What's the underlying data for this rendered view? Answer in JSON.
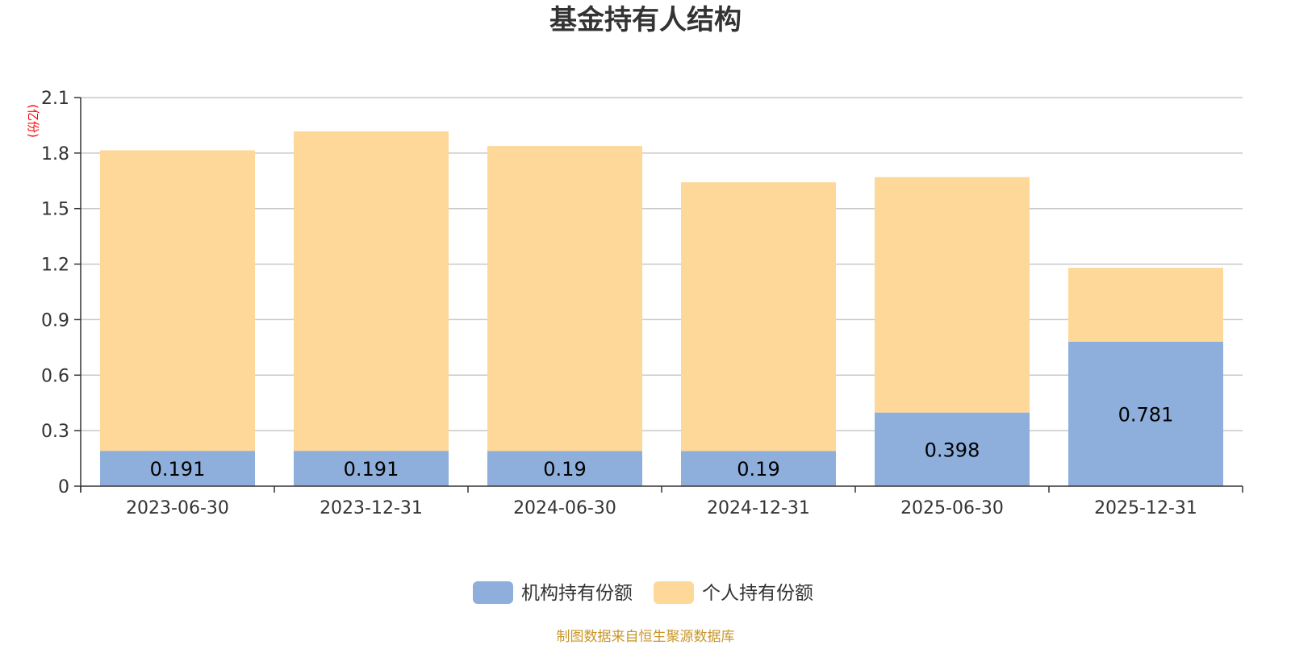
{
  "chart_data": {
    "type": "bar",
    "stacked": true,
    "title": "基金持有人结构",
    "unit_label": "(亿份)",
    "categories": [
      "2023-06-30",
      "2023-12-31",
      "2024-06-30",
      "2024-12-31",
      "2025-06-30",
      "2025-12-31"
    ],
    "series": [
      {
        "name": "机构持有份额",
        "color": "#8eaedb",
        "values": [
          0.191,
          0.191,
          0.19,
          0.19,
          0.398,
          0.781
        ],
        "labels": [
          "0.191",
          "0.191",
          "0.19",
          "0.19",
          "0.398",
          "0.781"
        ]
      },
      {
        "name": "个人持有份额",
        "color": "#fdd898",
        "values": [
          1.624,
          1.726,
          1.648,
          1.452,
          1.272,
          0.399
        ]
      }
    ],
    "ylim": [
      0,
      2.1
    ],
    "yticks": [
      "0",
      "0.3",
      "0.6",
      "0.9",
      "1.2",
      "1.5",
      "1.8",
      "2.1"
    ],
    "grid": true,
    "legend_position": "bottom-center"
  },
  "source_note": "制图数据来自恒生聚源数据库"
}
